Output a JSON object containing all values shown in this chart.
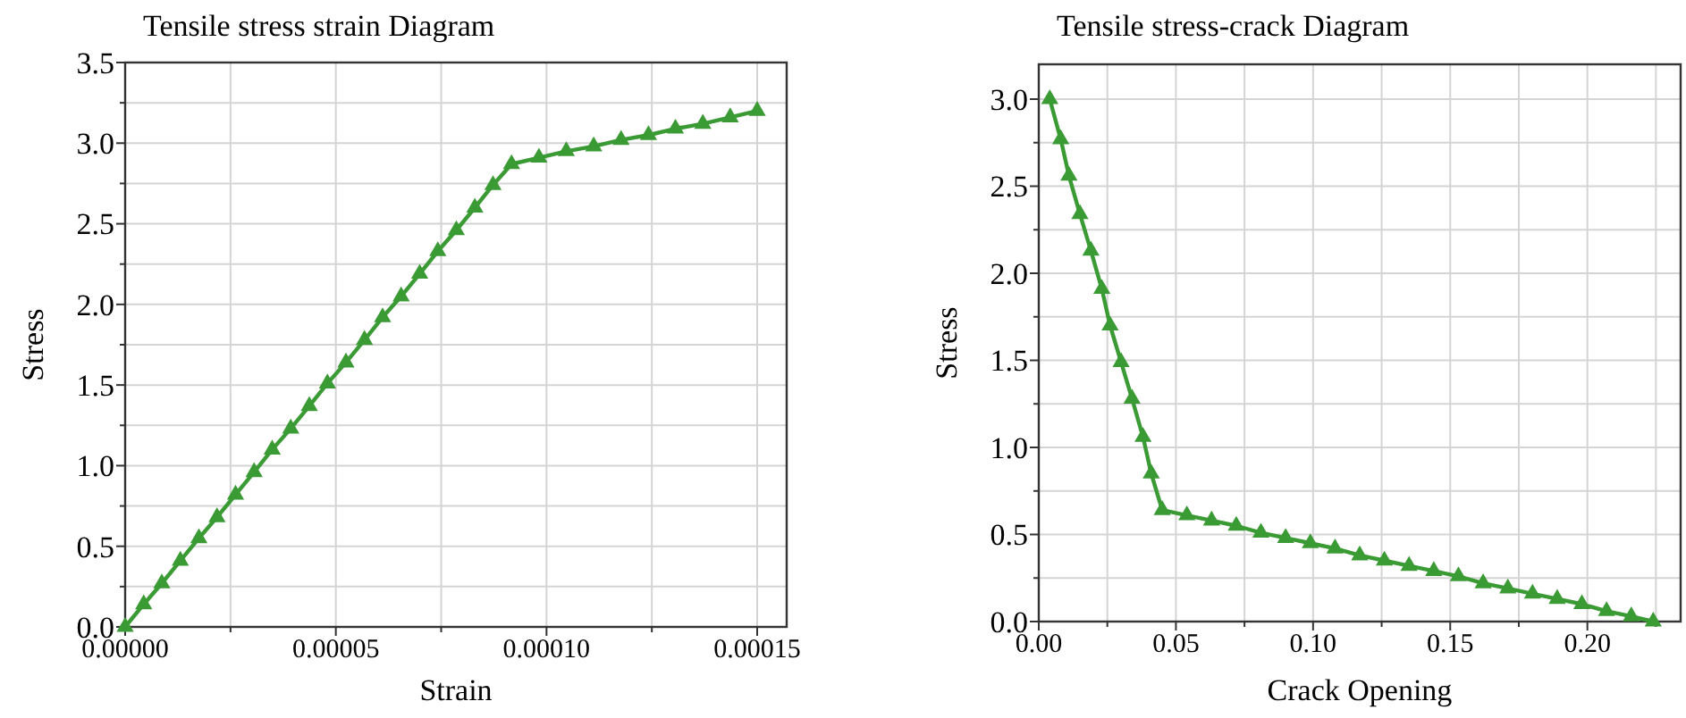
{
  "chart_data": [
    {
      "type": "line",
      "title": "Tensile stress strain Diagram",
      "xlabel": "Strain",
      "ylabel": "Stress",
      "marker": "triangle",
      "line_style": "solid",
      "grid": true,
      "xlim": [
        0,
        0.000157
      ],
      "ylim": [
        0,
        3.5
      ],
      "xticks": [
        {
          "value": 0,
          "label": "0.00000"
        },
        {
          "value": 2.5e-05,
          "label": null
        },
        {
          "value": 5e-05,
          "label": "0.00005"
        },
        {
          "value": 7.5e-05,
          "label": null
        },
        {
          "value": 0.0001,
          "label": "0.00010"
        },
        {
          "value": 0.000125,
          "label": null
        },
        {
          "value": 0.00015,
          "label": "0.00015"
        }
      ],
      "yticks": [
        {
          "value": 0,
          "label": "0.0"
        },
        {
          "value": 0.25,
          "label": null
        },
        {
          "value": 0.5,
          "label": "0.5"
        },
        {
          "value": 0.75,
          "label": null
        },
        {
          "value": 1,
          "label": "1.0"
        },
        {
          "value": 1.25,
          "label": null
        },
        {
          "value": 1.5,
          "label": "1.5"
        },
        {
          "value": 1.75,
          "label": null
        },
        {
          "value": 2,
          "label": "2.0"
        },
        {
          "value": 2.25,
          "label": null
        },
        {
          "value": 2.5,
          "label": "2.5"
        },
        {
          "value": 2.75,
          "label": null
        },
        {
          "value": 3,
          "label": "3.0"
        },
        {
          "value": 3.25,
          "label": null
        },
        {
          "value": 3.5,
          "label": "3.5"
        }
      ],
      "series": [
        {
          "color": "#3a9a34",
          "x": [
            0,
            4.4e-06,
            8.7e-06,
            1.31e-05,
            1.75e-05,
            2.18e-05,
            2.62e-05,
            3.06e-05,
            3.49e-05,
            3.93e-05,
            4.37e-05,
            4.8e-05,
            5.24e-05,
            5.68e-05,
            6.11e-05,
            6.55e-05,
            6.99e-05,
            7.42e-05,
            7.86e-05,
            8.3e-05,
            8.73e-05,
            9.17e-05,
            9.82e-05,
            0.0001047,
            0.0001112,
            0.0001177,
            0.0001242,
            0.0001306,
            0.0001371,
            0.0001436,
            0.00015
          ],
          "values": [
            0,
            0.14,
            0.27,
            0.41,
            0.55,
            0.68,
            0.82,
            0.96,
            1.1,
            1.23,
            1.37,
            1.51,
            1.64,
            1.78,
            1.92,
            2.05,
            2.19,
            2.33,
            2.46,
            2.6,
            2.74,
            2.87,
            2.91,
            2.95,
            2.98,
            3.02,
            3.05,
            3.09,
            3.12,
            3.16,
            3.2
          ]
        }
      ]
    },
    {
      "type": "line",
      "title": "Tensile stress-crack Diagram",
      "xlabel": "Crack Opening",
      "ylabel": "Stress",
      "marker": "triangle",
      "line_style": "solid",
      "grid": true,
      "xlim": [
        0,
        0.234
      ],
      "ylim": [
        0,
        3.2
      ],
      "xticks": [
        {
          "value": 0,
          "label": "0.00"
        },
        {
          "value": 0.025,
          "label": null
        },
        {
          "value": 0.05,
          "label": "0.05"
        },
        {
          "value": 0.075,
          "label": null
        },
        {
          "value": 0.1,
          "label": "0.10"
        },
        {
          "value": 0.125,
          "label": null
        },
        {
          "value": 0.15,
          "label": "0.15"
        },
        {
          "value": 0.175,
          "label": null
        },
        {
          "value": 0.2,
          "label": "0.20"
        },
        {
          "value": 0.225,
          "label": null
        }
      ],
      "yticks": [
        {
          "value": 0,
          "label": "0.0"
        },
        {
          "value": 0.25,
          "label": null
        },
        {
          "value": 0.5,
          "label": "0.5"
        },
        {
          "value": 0.75,
          "label": null
        },
        {
          "value": 1,
          "label": "1.0"
        },
        {
          "value": 1.25,
          "label": null
        },
        {
          "value": 1.5,
          "label": "1.5"
        },
        {
          "value": 1.75,
          "label": null
        },
        {
          "value": 2,
          "label": "2.0"
        },
        {
          "value": 2.25,
          "label": null
        },
        {
          "value": 2.5,
          "label": "2.5"
        },
        {
          "value": 2.75,
          "label": null
        },
        {
          "value": 3,
          "label": "3.0"
        }
      ],
      "series": [
        {
          "color": "#3a9a34",
          "x": [
            0.004,
            0.008,
            0.011,
            0.015,
            0.019,
            0.023,
            0.026,
            0.03,
            0.034,
            0.038,
            0.041,
            0.045,
            0.054,
            0.063,
            0.072,
            0.081,
            0.09,
            0.099,
            0.108,
            0.117,
            0.126,
            0.135,
            0.144,
            0.153,
            0.162,
            0.171,
            0.18,
            0.189,
            0.198,
            0.207,
            0.216,
            0.224
          ],
          "values": [
            3,
            2.77,
            2.56,
            2.34,
            2.13,
            1.91,
            1.7,
            1.49,
            1.28,
            1.06,
            0.85,
            0.64,
            0.61,
            0.58,
            0.55,
            0.51,
            0.48,
            0.45,
            0.42,
            0.38,
            0.35,
            0.32,
            0.29,
            0.26,
            0.22,
            0.19,
            0.16,
            0.13,
            0.1,
            0.06,
            0.03,
            0
          ]
        }
      ]
    }
  ]
}
